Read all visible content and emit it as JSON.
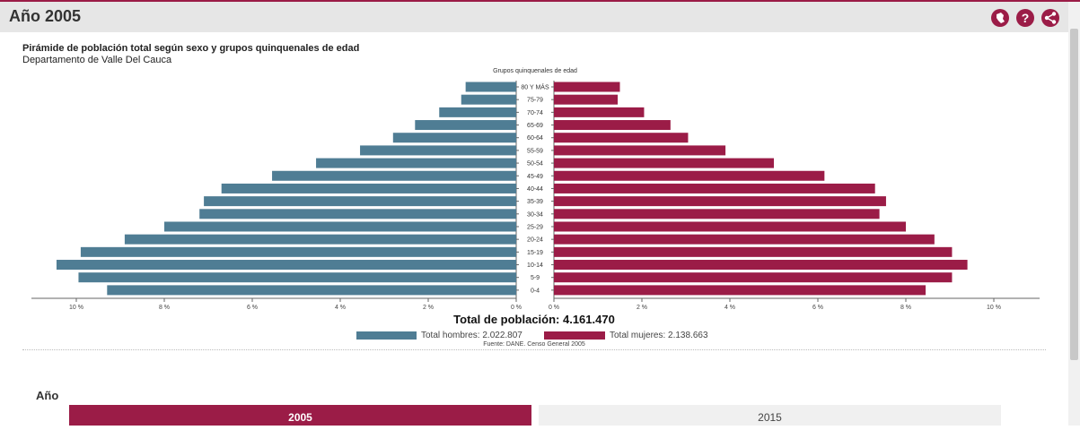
{
  "header": {
    "title": "Año 2005",
    "icons": [
      {
        "name": "map-icon",
        "glyph": "●"
      },
      {
        "name": "help-icon",
        "glyph": "?"
      },
      {
        "name": "share-icon",
        "glyph": "<"
      }
    ]
  },
  "chart_data": {
    "type": "bar",
    "title": "Pirámide de población total según sexo y grupos quinquenales de edad",
    "subtitle": "Departamento de Valle Del Cauca",
    "category_axis_label": "Grupos quinquenales de edad",
    "categories": [
      "80 Y MÁS",
      "75-79",
      "70-74",
      "65-69",
      "60-64",
      "55-59",
      "50-54",
      "45-49",
      "40-44",
      "35-39",
      "30-34",
      "25-29",
      "20-24",
      "15-19",
      "10-14",
      "5-9",
      "0-4"
    ],
    "series": [
      {
        "name": "Total hombres: 2.022.807",
        "side": "left",
        "color": "#4f7d94",
        "values": [
          1.15,
          1.25,
          1.75,
          2.3,
          2.8,
          3.55,
          4.55,
          5.55,
          6.7,
          7.1,
          7.2,
          8.0,
          8.9,
          9.9,
          10.45,
          9.95,
          9.3
        ]
      },
      {
        "name": "Total mujeres: 2.138.663",
        "side": "right",
        "color": "#9b1c47",
        "values": [
          1.5,
          1.45,
          2.05,
          2.65,
          3.05,
          3.9,
          5.0,
          6.15,
          7.3,
          7.55,
          7.4,
          8.0,
          8.65,
          9.05,
          9.4,
          9.05,
          8.45
        ]
      }
    ],
    "xlim": [
      0,
      10
    ],
    "x_ticks_left": [
      "10 %",
      "8 %",
      "6 %",
      "4 %",
      "2 %",
      "0 %"
    ],
    "x_ticks_right": [
      "0 %",
      "2 %",
      "4 %",
      "6 %",
      "8 %",
      "10 %"
    ],
    "total_label": "Total de población: 4.161.470",
    "source": "Fuente: DANE. Censo General 2005"
  },
  "year_selector": {
    "label": "Año",
    "options": [
      "2005",
      "2015"
    ],
    "selected": "2005"
  },
  "colors": {
    "accent": "#9b1c47",
    "male": "#4f7d94",
    "female": "#9b1c47",
    "header_bg": "#e6e6e6"
  }
}
